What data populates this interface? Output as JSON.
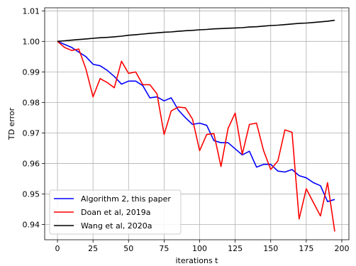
{
  "chart_data": {
    "type": "line",
    "xlabel": "iterations t",
    "ylabel": "TD error",
    "xlim": [
      -9,
      205
    ],
    "ylim": [
      0.935,
      1.011
    ],
    "xticks": [
      0,
      25,
      50,
      75,
      100,
      125,
      150,
      175,
      200
    ],
    "yticks": [
      0.94,
      0.95,
      0.96,
      0.97,
      0.98,
      0.99,
      1.0,
      1.01
    ],
    "ytick_labels": [
      "0.94",
      "0.95",
      "0.96",
      "0.97",
      "0.98",
      "0.99",
      "1.00",
      "1.01"
    ],
    "grid": true,
    "legend_position": "lower-left",
    "x": [
      0,
      5,
      10,
      15,
      20,
      25,
      30,
      35,
      40,
      45,
      50,
      55,
      60,
      65,
      70,
      75,
      80,
      85,
      90,
      95,
      100,
      105,
      110,
      115,
      120,
      125,
      130,
      135,
      140,
      145,
      150,
      155,
      160,
      165,
      170,
      175,
      180,
      185,
      190,
      195
    ],
    "series": [
      {
        "name": "Algorithm 2, this paper",
        "color": "#0000ff",
        "values": [
          1.0,
          0.999,
          0.998,
          0.9965,
          0.995,
          0.9925,
          0.992,
          0.9905,
          0.9885,
          0.986,
          0.987,
          0.987,
          0.9855,
          0.9815,
          0.9818,
          0.9805,
          0.9815,
          0.9775,
          0.975,
          0.9728,
          0.9732,
          0.9725,
          0.9675,
          0.9668,
          0.9668,
          0.9648,
          0.9628,
          0.964,
          0.9588,
          0.9597,
          0.9597,
          0.9575,
          0.9572,
          0.958,
          0.956,
          0.9553,
          0.9537,
          0.9527,
          0.9475,
          0.9482
        ]
      },
      {
        "name": "Doan et al, 2019a",
        "color": "#ff0000",
        "values": [
          1.0,
          0.998,
          0.997,
          0.9975,
          0.991,
          0.9818,
          0.9878,
          0.9865,
          0.9848,
          0.9935,
          0.9895,
          0.99,
          0.9858,
          0.9858,
          0.9828,
          0.9695,
          0.9772,
          0.9785,
          0.9782,
          0.9745,
          0.9642,
          0.9695,
          0.9698,
          0.959,
          0.9715,
          0.9765,
          0.963,
          0.9728,
          0.9732,
          0.9642,
          0.958,
          0.9608,
          0.971,
          0.9702,
          0.9418,
          0.9517,
          0.9472,
          0.9428,
          0.9537,
          0.9377
        ]
      },
      {
        "name": "Wang et al, 2020a",
        "color": "#000000",
        "values": [
          1.0,
          1.0002,
          1.0004,
          1.0006,
          1.0008,
          1.001,
          1.0012,
          1.0013,
          1.0015,
          1.0017,
          1.002,
          1.0022,
          1.0024,
          1.0026,
          1.0028,
          1.003,
          1.0031,
          1.0033,
          1.0035,
          1.0036,
          1.0038,
          1.0039,
          1.0041,
          1.0042,
          1.0043,
          1.0044,
          1.0045,
          1.0047,
          1.0048,
          1.005,
          1.0052,
          1.0053,
          1.0055,
          1.0057,
          1.0059,
          1.006,
          1.0062,
          1.0064,
          1.0066,
          1.0069
        ]
      }
    ]
  }
}
